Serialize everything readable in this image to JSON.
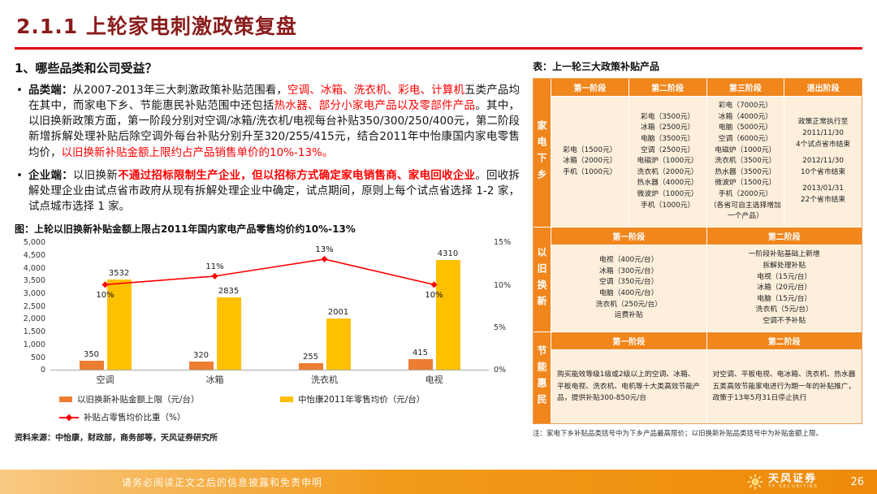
{
  "header": {
    "title": "2.1.1 上轮家电刺激政策复盘"
  },
  "left": {
    "heading": "1、哪些品类和公司受益？",
    "bullets": [
      {
        "segments": [
          {
            "t": "品类端：",
            "s": "b"
          },
          {
            "t": "从2007-2013年三大刺激政策补贴范围看，",
            "s": ""
          },
          {
            "t": "空调、冰箱、洗衣机、彩电、计算机",
            "s": "r"
          },
          {
            "t": "五类产品均在其中，而家电下乡、节能惠民补贴范围中还包括",
            "s": ""
          },
          {
            "t": "热水器、部分小家电产品以及零部件产品",
            "s": "r"
          },
          {
            "t": "。其中，以旧换新政策方面，第一阶段分别对空调/冰箱/洗衣机/电视每台补贴350/300/250/400元，第二阶段新增拆解处理补贴后除空调外每台补贴分别升至320/255/415元，结合2011年中怡康国内家电零售均价，",
            "s": ""
          },
          {
            "t": "以旧换新补贴金额上限约占产品销售单价的10%-13%。",
            "s": "r"
          }
        ]
      },
      {
        "segments": [
          {
            "t": "企业端：",
            "s": "b"
          },
          {
            "t": "以旧换新",
            "s": ""
          },
          {
            "t": "不通过招标限制生产企业，但以招标方式确定家电销售商、家电回收企业",
            "s": "rb"
          },
          {
            "t": "。回收拆解处理企业由试点省市政府从现有拆解处理企业中确定，试点期间，原则上每个试点省选择 1-2 家，试点城市选择 1 家。",
            "s": ""
          }
        ]
      }
    ],
    "source": "资料来源：中怡康，财政部，商务部等，天风证券研究所"
  },
  "chart_data": {
    "type": "bar+line",
    "title": "图：上轮以旧换新补贴金额上限占2011年国内家电产品零售均价约10%-13%",
    "categories": [
      "空调",
      "冰箱",
      "洗衣机",
      "电视"
    ],
    "series": [
      {
        "name": "以旧换新补贴金额上限（元/台）",
        "type": "bar",
        "axis": "left",
        "color": "#ED7D31",
        "values": [
          350,
          320,
          255,
          415
        ]
      },
      {
        "name": "中怡康2011年零售均价（元/台）",
        "type": "bar",
        "axis": "left",
        "color": "#FFC000",
        "values": [
          3532,
          2835,
          2001,
          4310
        ]
      },
      {
        "name": "补贴占零售均价比重（%）",
        "type": "line",
        "axis": "right",
        "color": "#FF0000",
        "values": [
          10,
          11,
          13,
          10
        ],
        "labels": [
          "10%",
          "11%",
          "13%",
          "10%"
        ],
        "label_pos": [
          "below",
          "above",
          "above",
          "below"
        ]
      }
    ],
    "left_axis": {
      "min": 0,
      "max": 5000,
      "step": 500
    },
    "right_axis": {
      "min": 0,
      "max": 15,
      "step": 5
    },
    "grid": false,
    "legend_position": "bottom"
  },
  "table": {
    "title": "表：上一轮三大政策补贴产品",
    "sections": [
      {
        "label": "家电下乡",
        "columns": [
          "第一阶段",
          "第二阶段",
          "第三阶段",
          "退出阶段"
        ],
        "cells": [
          [
            "彩电（1500元）",
            "冰箱（2000元）",
            "手机（1000元）"
          ],
          [
            "彩电（3500元）",
            "冰箱（2500元）",
            "电脑（3500元）",
            "空调（2500元）",
            "电磁炉（1000元）",
            "洗衣机（2000元）",
            "热水器（4000元）",
            "微波炉（1000元）",
            "手机（1000元）"
          ],
          [
            "彩电（7000元）",
            "冰箱（4000元）",
            "电脑（5000元）",
            "空调（6000元）",
            "电磁炉（1000元）",
            "洗衣机（3500元）",
            "热水器（3500元）",
            "微波炉（1500元）",
            "手机（2000元）",
            "（各省可自主选择增加一个产品）"
          ],
          [
            "政策正常执行至",
            "2011/11/30",
            "4个试点省市结束",
            "",
            "2012/11/30",
            "10个省市结束",
            "",
            "2013/01/31",
            "22个省市结束"
          ]
        ]
      },
      {
        "label": "以旧换新",
        "columns": [
          "第一阶段",
          "第二阶段"
        ],
        "cells": [
          [
            "电视（400元/台）",
            "冰箱（300元/台）",
            "空调（350元/台）",
            "电脑（400元/台）",
            "洗衣机（250元/台）",
            "运费补贴"
          ],
          [
            "一阶段补贴基础上新增",
            "拆解处理补贴",
            "电视（15元/台）",
            "冰箱（20元/台）",
            "电脑（15元/台）",
            "洗衣机（5元/台）",
            "空调不予补贴"
          ]
        ]
      },
      {
        "label": "节能惠民",
        "columns": [
          "第一阶段",
          "第二阶段"
        ],
        "cells": [
          [
            "购买能效等级1级或2级以上的空调、冰箱、平板电视、洗衣机、电机等十大类高效节能产品，提供补贴300-850元/台"
          ],
          [
            "对空调、平板电视、电冰箱、洗衣机、热水器五类高效节能家电进行为期一年的补贴推广，政策于13年5月31日停止执行"
          ]
        ]
      }
    ],
    "note": "注：家电下乡补贴品类括号中为下乡产品最高限价；以旧换新补贴品类括号中为补贴金额上限。"
  },
  "footer": {
    "disclaimer": "请务必阅读正文之后的信息披露和免责申明",
    "brand": "天风证券",
    "brand_sub": "TF SECURITIES",
    "page": "26"
  },
  "colors": {
    "accent_red": "#E60012",
    "title_maroon": "#8A1C1C",
    "body_red": "#FE0000",
    "table_header_orange": "#F0861C",
    "table_cell_bg": "#FDEFDC",
    "footer_from": "#F8C983",
    "footer_mid": "#F29A1B",
    "footer_to": "#EE8A0A"
  }
}
